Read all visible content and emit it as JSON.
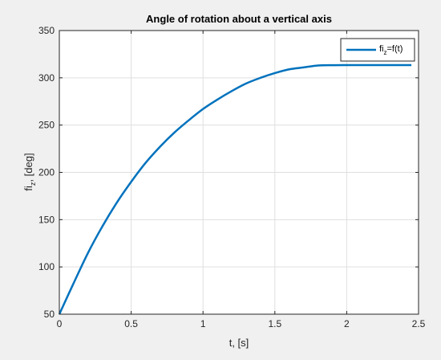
{
  "chart_data": {
    "type": "line",
    "title": "Angle of rotation about a vertical axis",
    "xlabel": "t, [s]",
    "ylabel_main": "fi",
    "ylabel_sub": "z",
    "ylabel_rest": ", [deg]",
    "xlim": [
      0,
      2.5
    ],
    "ylim": [
      50,
      350
    ],
    "xticks": [
      0,
      0.5,
      1,
      1.5,
      2,
      2.5
    ],
    "xtick_labels": [
      "0",
      "0.5",
      "1",
      "1.5",
      "2",
      "2.5"
    ],
    "yticks": [
      50,
      100,
      150,
      200,
      250,
      300,
      350
    ],
    "ytick_labels": [
      "50",
      "100",
      "150",
      "200",
      "250",
      "300",
      "350"
    ],
    "grid": true,
    "legend_position": "top-right",
    "series": [
      {
        "legend_main": "fi",
        "legend_sub": "z",
        "legend_rest": "=f(t)",
        "color": "#0072bd",
        "x": [
          0,
          0.1,
          0.2,
          0.3,
          0.4,
          0.5,
          0.6,
          0.7,
          0.8,
          0.9,
          1.0,
          1.1,
          1.2,
          1.3,
          1.4,
          1.5,
          1.6,
          1.7,
          1.8,
          1.9,
          2.0,
          2.1,
          2.2,
          2.3,
          2.45
        ],
        "y": [
          50,
          83,
          115,
          143,
          168,
          190,
          210,
          227,
          242,
          255,
          267,
          277,
          286,
          294,
          300,
          305,
          309,
          311,
          313,
          313.4,
          313.5,
          313.5,
          313.5,
          313.5,
          313.5
        ]
      }
    ]
  }
}
